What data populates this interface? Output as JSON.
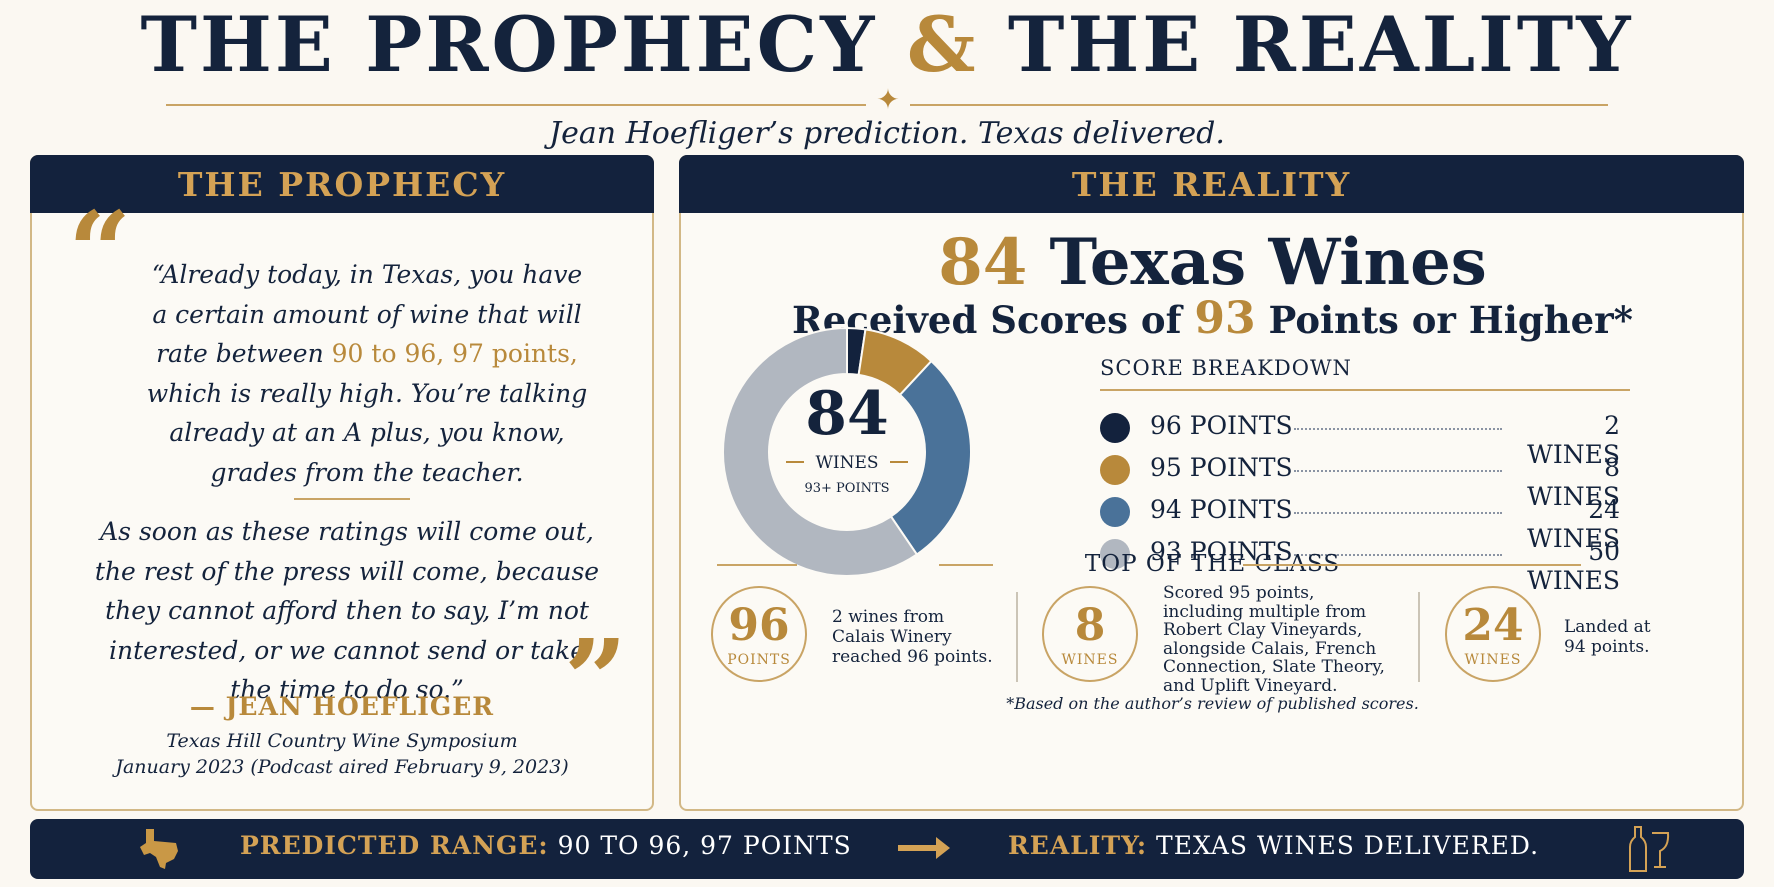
{
  "header": {
    "title_left": "THE PROPHECY",
    "title_amp": "&",
    "title_right": "THE REALITY",
    "subtitle": "Jean Hoefliger’s prediction. Texas delivered."
  },
  "prophecy": {
    "heading": "THE PROPHECY",
    "quote1_lines": [
      "“Already today, in Texas, you have",
      "a certain amount of wine that will"
    ],
    "quote1_before": "rate between ",
    "quote1_highlight": "90 to 96, 97 points,",
    "quote1_after_lines": [
      "which is really high. You’re talking",
      "already at an A plus, you know,",
      "grades from the teacher."
    ],
    "quote2_lines": [
      "As soon as these ratings will come out,",
      "the rest of the press will come, because",
      "they cannot afford then to say, I’m not",
      "interested, or we cannot send or take",
      "the time to do so.”"
    ],
    "attribution": "— JEAN HOEFLIGER",
    "event_line1": "Texas Hill Country Wine Symposium",
    "event_line2": "January 2023 (Podcast aired February 9, 2023)"
  },
  "reality": {
    "heading": "THE REALITY",
    "headline_num": "84",
    "headline_text": "Texas Wines",
    "subhead_before": "Received Scores of ",
    "subhead_num": "93",
    "subhead_after": " Points or Higher*",
    "donut_center_num": "84",
    "donut_center_label": "WINES",
    "donut_center_sub": "93+ POINTS",
    "breakdown_title": "SCORE BREAKDOWN",
    "top_title": "TOP OF THE CLASS",
    "top": [
      {
        "big": "96",
        "small": "POINTS",
        "text_lines": [
          "2 wines from",
          "Calais Winery",
          "reached 96 points."
        ]
      },
      {
        "big": "8",
        "small": "WINES",
        "text_lines": [
          "Scored 95 points,",
          "including multiple from",
          "Robert Clay Vineyards,",
          "alongside Calais, French",
          "Connection, Slate Theory,",
          "and Uplift Vineyard."
        ]
      },
      {
        "big": "24",
        "small": "WINES",
        "text_lines": [
          "Landed at",
          "94 points."
        ]
      }
    ],
    "footnote": "*Based on the author’s review of published scores."
  },
  "chart_data": {
    "type": "pie",
    "donut": true,
    "categories": [
      "96 POINTS",
      "95 POINTS",
      "94 POINTS",
      "93 POINTS"
    ],
    "values": [
      2,
      8,
      24,
      50
    ],
    "value_labels": [
      "2 WINES",
      "8 WINES",
      "24 WINES",
      "50 WINES"
    ],
    "colors": [
      "#13223d",
      "#b8893b",
      "#4a7299",
      "#b1b7c0"
    ],
    "total": 84
  },
  "bottom": {
    "pred_label": "PREDICTED RANGE:",
    "pred_value": "90 TO 96, 97 POINTS",
    "real_label": "REALITY:",
    "real_value": "TEXAS WINES DELIVERED.",
    "icons": [
      "texas-icon",
      "arrow-right-icon",
      "wine-icon"
    ]
  }
}
